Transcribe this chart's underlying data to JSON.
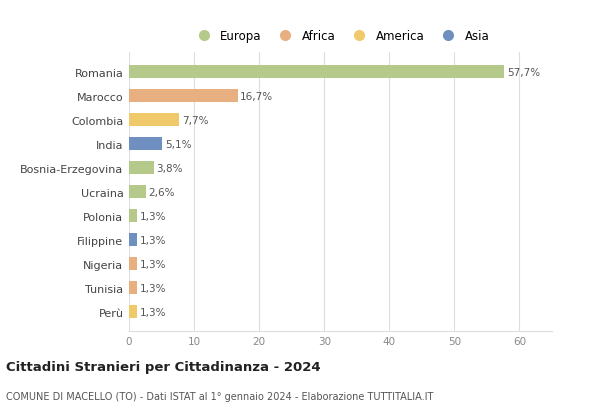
{
  "countries": [
    "Romania",
    "Marocco",
    "Colombia",
    "India",
    "Bosnia-Erzegovina",
    "Ucraina",
    "Polonia",
    "Filippine",
    "Nigeria",
    "Tunisia",
    "Perù"
  ],
  "values": [
    57.7,
    16.7,
    7.7,
    5.1,
    3.8,
    2.6,
    1.3,
    1.3,
    1.3,
    1.3,
    1.3
  ],
  "labels": [
    "57,7%",
    "16,7%",
    "7,7%",
    "5,1%",
    "3,8%",
    "2,6%",
    "1,3%",
    "1,3%",
    "1,3%",
    "1,3%",
    "1,3%"
  ],
  "colors": [
    "#b5c98a",
    "#e8b080",
    "#f0c96a",
    "#6e8fc0",
    "#b5c98a",
    "#b5c98a",
    "#b5c98a",
    "#6e8fc0",
    "#e8b080",
    "#e8b080",
    "#f0c96a"
  ],
  "legend_labels": [
    "Europa",
    "Africa",
    "America",
    "Asia"
  ],
  "legend_colors": [
    "#b5c98a",
    "#e8b080",
    "#f0c96a",
    "#6e8fc0"
  ],
  "title": "Cittadini Stranieri per Cittadinanza - 2024",
  "subtitle": "COMUNE DI MACELLO (TO) - Dati ISTAT al 1° gennaio 2024 - Elaborazione TUTTITALIA.IT",
  "xlim": [
    0,
    65
  ],
  "xticks": [
    0,
    10,
    20,
    30,
    40,
    50,
    60
  ],
  "bg_color": "#ffffff",
  "grid_color": "#dddddd",
  "bar_height": 0.55,
  "label_fontsize": 7.5,
  "ytick_fontsize": 8,
  "xtick_fontsize": 7.5,
  "legend_fontsize": 8.5,
  "title_fontsize": 9.5,
  "subtitle_fontsize": 7
}
